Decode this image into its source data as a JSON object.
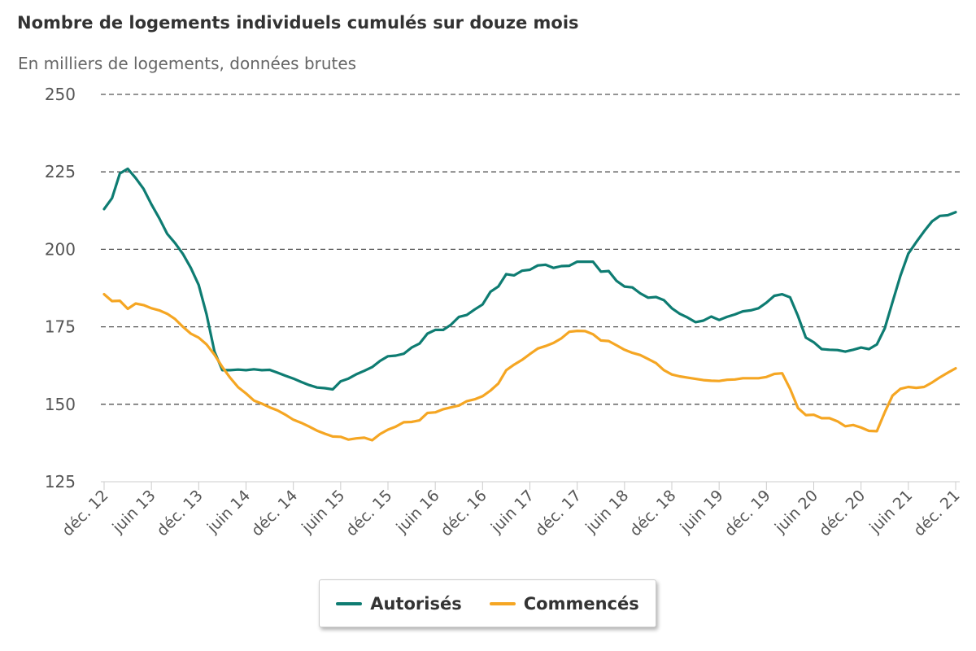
{
  "chart_data": {
    "type": "line",
    "title": "Nombre de logements individuels cumulés sur douze mois",
    "subtitle": "En milliers de logements, données brutes",
    "ylim": [
      125,
      250
    ],
    "yticks": [
      125,
      150,
      175,
      200,
      225,
      250
    ],
    "grid": true,
    "legend_position": "bottom",
    "x_tick_labels": [
      "déc. 12",
      "juin 13",
      "déc. 13",
      "juin 14",
      "déc. 14",
      "juin 15",
      "déc. 15",
      "juin 16",
      "déc. 16",
      "juin 17",
      "déc. 17",
      "juin 18",
      "déc. 18",
      "juin 19",
      "déc. 19",
      "juin 20",
      "déc. 20",
      "juin 21",
      "déc. 21"
    ],
    "x_range": [
      "déc. 12",
      "déc. 21"
    ],
    "x_step": "monthly",
    "series": [
      {
        "name": "Autorisés",
        "color": "#0e7c72",
        "values": [
          213,
          216.5,
          224.5,
          226,
          223,
          219.5,
          214.5,
          210,
          205,
          202,
          198.5,
          194,
          188.5,
          179,
          167,
          161,
          161,
          161.2,
          161,
          161.3,
          161,
          161.1,
          160.2,
          159.2,
          158.3,
          157.2,
          156.2,
          155.4,
          155.2,
          154.8,
          157.4,
          158.3,
          159.7,
          160.8,
          162,
          164,
          165.5,
          165.7,
          166.3,
          168.3,
          169.6,
          172.8,
          174,
          174,
          175.7,
          178.2,
          178.8,
          180.6,
          182.2,
          186.3,
          188,
          192,
          191.6,
          193.1,
          193.4,
          194.8,
          195,
          194,
          194.6,
          194.7,
          196,
          196,
          196,
          192.8,
          193,
          189.8,
          188,
          187.7,
          185.8,
          184.4,
          184.6,
          183.6,
          181,
          179.2,
          178,
          176.5,
          177,
          178.3,
          177.2,
          178.2,
          179,
          180,
          180.3,
          181,
          182.8,
          185,
          185.5,
          184.5,
          178.5,
          171.5,
          170,
          167.8,
          167.6,
          167.5,
          167,
          167.6,
          168.3,
          167.8,
          169.3,
          174.5,
          183,
          191.5,
          198.6,
          202.3,
          205.8,
          209,
          210.8,
          211,
          212
        ]
      },
      {
        "name": "Commencés",
        "color": "#f5a623",
        "values": [
          185.5,
          183.3,
          183.4,
          180.8,
          182.5,
          182,
          181,
          180.3,
          179.2,
          177.5,
          175,
          172.8,
          171.5,
          169.3,
          166,
          162,
          158.5,
          155.5,
          153.5,
          151.2,
          150.2,
          149,
          148,
          146.6,
          145,
          144,
          142.8,
          141.5,
          140.5,
          139.6,
          139.5,
          138.6,
          139,
          139.2,
          138.4,
          140.4,
          141.8,
          142.8,
          144.2,
          144.3,
          144.8,
          147.2,
          147.4,
          148.4,
          149,
          149.6,
          151,
          151.6,
          152.6,
          154.4,
          156.7,
          161,
          162.8,
          164.3,
          166.2,
          168,
          168.8,
          169.8,
          171.3,
          173.4,
          173.7,
          173.6,
          172.6,
          170.6,
          170.4,
          169,
          167.6,
          166.6,
          165.9,
          164.6,
          163.3,
          161,
          159.6,
          159,
          158.6,
          158.2,
          157.8,
          157.6,
          157.5,
          157.9,
          158,
          158.4,
          158.4,
          158.4,
          158.8,
          159.8,
          160,
          155,
          148.8,
          146.5,
          146.6,
          145.5,
          145.5,
          144.5,
          142.9,
          143.3,
          142.5,
          141.4,
          141.3,
          147.4,
          152.8,
          155,
          155.6,
          155.3,
          155.6,
          157,
          158.7,
          160.2,
          161.6
        ]
      }
    ]
  }
}
